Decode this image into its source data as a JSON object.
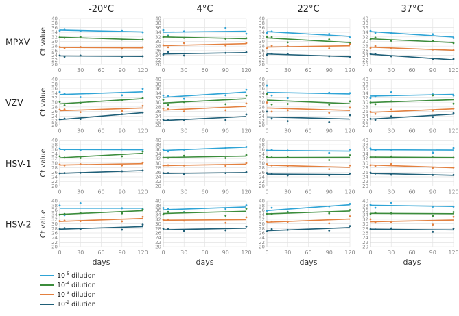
{
  "chart_data": {
    "type": "scatter",
    "x_days": [
      0,
      7,
      30,
      90,
      120
    ],
    "xlabel": "days",
    "ylabel": "Ct value",
    "xlim": [
      0,
      120
    ],
    "xticks": [
      "0",
      "30",
      "60",
      "90",
      "120"
    ],
    "ylim": [
      20,
      40
    ],
    "yticks": [
      "20",
      "22",
      "24",
      "26",
      "28",
      "30",
      "32",
      "34",
      "36",
      "38",
      "40"
    ],
    "grid": true,
    "columns": [
      "-20°C",
      "4°C",
      "22°C",
      "37°C"
    ],
    "rows": [
      "MPXV",
      "VZV",
      "HSV-1",
      "HSV-2"
    ],
    "series": [
      {
        "name": "10-5 dilution",
        "base": "10",
        "exp": "-5",
        "suffix": " dilution",
        "color": "#2fa4d6"
      },
      {
        "name": "10-4 dilution",
        "base": "10",
        "exp": "-4",
        "suffix": " dilution",
        "color": "#3b8c3b"
      },
      {
        "name": "10-3 dilution",
        "base": "10",
        "exp": "-3",
        "suffix": " dilution",
        "color": "#e3803f"
      },
      {
        "name": "10-2 dilution",
        "base": "10",
        "exp": "-2",
        "suffix": " dilution",
        "color": "#1f5f78"
      }
    ],
    "panels": [
      [
        [
          [
            34.7,
            35.3,
            34.5,
            34.6,
            34.0
          ],
          [
            31.8,
            31.6,
            32.0,
            30.8,
            30.8
          ],
          [
            27.6,
            27.2,
            27.6,
            26.9,
            27.5
          ],
          [
            23.9,
            23.4,
            23.9,
            23.4,
            23.6
          ]
        ],
        [
          [
            34.9,
            32.6,
            34.4,
            35.8,
            33.4
          ],
          [
            31.9,
            32.3,
            31.6,
            31.2,
            31.4
          ],
          [
            28.4,
            27.5,
            29.3,
            28.3,
            29.3
          ],
          [
            24.3,
            25.5,
            23.9,
            25.0,
            25.3
          ]
        ],
        [
          [
            33.8,
            34.4,
            34.0,
            33.3,
            31.8
          ],
          [
            32.0,
            31.9,
            29.6,
            30.9,
            29.2
          ],
          [
            27.0,
            28.2,
            28.1,
            27.0,
            28.8
          ],
          [
            24.2,
            24.7,
            24.5,
            23.6,
            23.4
          ]
        ],
        [
          [
            34.6,
            33.8,
            33.6,
            33.2,
            31.5
          ],
          [
            30.8,
            31.7,
            30.3,
            30.3,
            29.3
          ],
          [
            27.2,
            28.0,
            27.0,
            26.5,
            26.2
          ],
          [
            24.6,
            24.5,
            23.6,
            22.2,
            22.4
          ]
        ]
      ],
      [
        [
          [
            34.5,
            33.7,
            32.3,
            33.1,
            35.8
          ],
          [
            30.2,
            28.7,
            29.8,
            30.8,
            31.8
          ],
          [
            26.8,
            26.9,
            25.7,
            26.2,
            28.5
          ],
          [
            22.6,
            22.9,
            22.7,
            24.8,
            25.5
          ]
        ],
        [
          [
            33.0,
            32.7,
            31.5,
            33.1,
            35.4
          ],
          [
            31.1,
            28.8,
            30.1,
            29.2,
            33.0
          ],
          [
            27.3,
            27.0,
            26.0,
            26.5,
            29.5
          ],
          [
            22.5,
            22.2,
            22.3,
            22.3,
            24.7
          ]
        ],
        [
          [
            37.2,
            33.0,
            31.9,
            34.2,
            34.0
          ],
          [
            33.7,
            29.1,
            29.3,
            29.0,
            30.4
          ],
          [
            29.9,
            25.9,
            26.5,
            25.4,
            27.7
          ],
          [
            25.9,
            22.9,
            21.8,
            21.3,
            24.4
          ]
        ],
        [
          [
            31.9,
            32.5,
            34.4,
            33.5,
            33.0
          ],
          [
            29.9,
            29.2,
            30.4,
            33.1,
            29.4
          ],
          [
            25.8,
            24.9,
            26.8,
            26.4,
            27.3
          ],
          [
            22.8,
            22.4,
            23.9,
            23.6,
            25.2
          ]
        ]
      ],
      [
        [
          [
            36.2,
            35.8,
            35.5,
            35.9,
            35.8
          ],
          [
            33.0,
            32.4,
            32.2,
            33.0,
            35.0
          ],
          [
            29.4,
            29.0,
            29.5,
            29.0,
            30.2
          ],
          [
            25.5,
            25.6,
            25.7,
            26.4,
            26.7
          ]
        ],
        [
          [
            35.9,
            35.1,
            35.8,
            36.4,
            37.0
          ],
          [
            32.4,
            32.3,
            33.2,
            32.2,
            33.5
          ],
          [
            29.0,
            29.1,
            29.0,
            28.8,
            30.0
          ],
          [
            25.6,
            25.6,
            25.2,
            25.6,
            26.0
          ]
        ],
        [
          [
            35.4,
            35.8,
            35.4,
            34.4,
            35.8
          ],
          [
            32.6,
            32.5,
            32.6,
            31.3,
            33.4
          ],
          [
            29.5,
            29.0,
            28.8,
            27.4,
            29.0
          ],
          [
            25.6,
            25.2,
            24.6,
            24.6,
            25.4
          ]
        ],
        [
          [
            36.3,
            35.5,
            35.7,
            34.5,
            36.5
          ],
          [
            32.5,
            32.5,
            32.9,
            32.5,
            32.4
          ],
          [
            29.1,
            28.8,
            29.6,
            28.0,
            28.1
          ],
          [
            25.8,
            25.4,
            24.9,
            24.8,
            24.8
          ]
        ]
      ],
      [
        [
          [
            38.0,
            33.8,
            39.0,
            36.8,
            36.4
          ],
          [
            34.0,
            34.3,
            34.8,
            34.6,
            36.2
          ],
          [
            31.2,
            31.4,
            31.2,
            31.1,
            33.1
          ],
          [
            27.8,
            28.2,
            27.7,
            27.5,
            29.7
          ]
        ],
        [
          [
            36.9,
            36.6,
            35.1,
            36.5,
            38.1
          ],
          [
            34.1,
            35.2,
            35.0,
            33.6,
            36.6
          ],
          [
            31.8,
            31.9,
            31.4,
            30.4,
            32.9
          ],
          [
            28.0,
            27.7,
            26.9,
            27.2,
            28.9
          ]
        ],
        [
          [
            35.7,
            37.0,
            35.2,
            37.6,
            38.7
          ],
          [
            34.3,
            34.3,
            35.1,
            34.6,
            36.0
          ],
          [
            31.0,
            31.0,
            30.9,
            30.2,
            33.3
          ],
          [
            26.7,
            27.7,
            27.4,
            27.1,
            29.1
          ]
        ],
        [
          [
            38.3,
            37.0,
            39.2,
            37.5,
            37.5
          ],
          [
            34.4,
            34.9,
            34.6,
            33.5,
            35.1
          ],
          [
            32.0,
            30.5,
            30.8,
            29.7,
            33.1
          ],
          [
            27.7,
            27.6,
            28.1,
            26.5,
            28.0
          ]
        ]
      ]
    ]
  }
}
